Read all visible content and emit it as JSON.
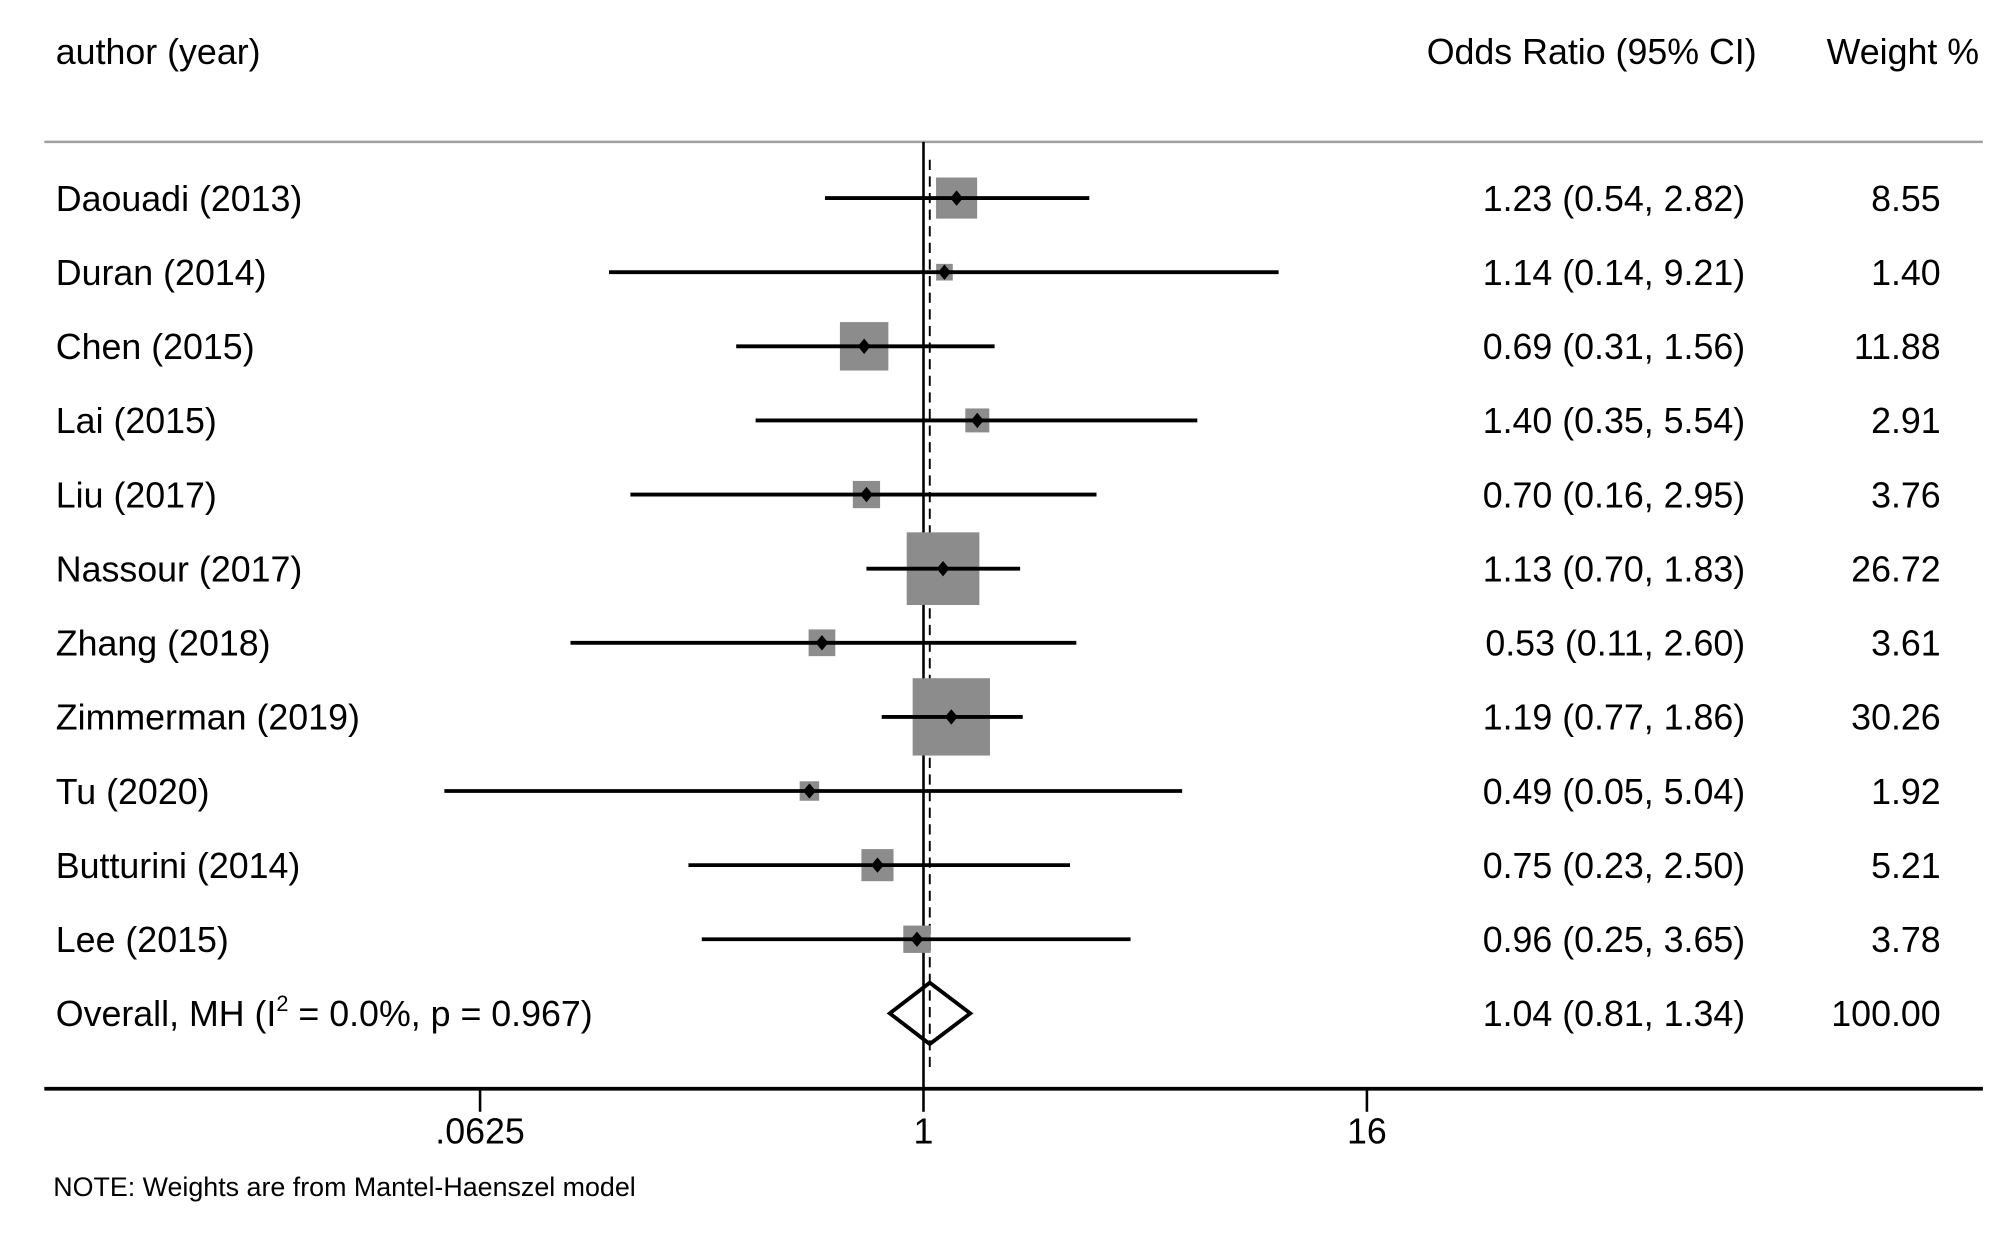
{
  "chart_data": {
    "type": "forest",
    "headers": {
      "study": "author (year)",
      "effect": "Odds Ratio  (95% CI)",
      "weight": "Weight  %"
    },
    "x_scale": "log",
    "x_ticks": [
      0.0625,
      1,
      16
    ],
    "x_tick_labels": [
      ".0625",
      "1",
      "16"
    ],
    "null_line": 1,
    "studies": [
      {
        "label": "Daouadi (2013)",
        "or": 1.23,
        "lo": 0.54,
        "hi": 2.82,
        "ci_text": "1.23 (0.54, 2.82)",
        "weight": 8.55,
        "weight_text": "8.55"
      },
      {
        "label": "Duran (2014)",
        "or": 1.14,
        "lo": 0.14,
        "hi": 9.21,
        "ci_text": "1.14 (0.14, 9.21)",
        "weight": 1.4,
        "weight_text": "1.40"
      },
      {
        "label": "Chen (2015)",
        "or": 0.69,
        "lo": 0.31,
        "hi": 1.56,
        "ci_text": "0.69 (0.31, 1.56)",
        "weight": 11.88,
        "weight_text": "11.88"
      },
      {
        "label": "Lai (2015)",
        "or": 1.4,
        "lo": 0.35,
        "hi": 5.54,
        "ci_text": "1.40 (0.35, 5.54)",
        "weight": 2.91,
        "weight_text": "2.91"
      },
      {
        "label": "Liu (2017)",
        "or": 0.7,
        "lo": 0.16,
        "hi": 2.95,
        "ci_text": "0.70 (0.16, 2.95)",
        "weight": 3.76,
        "weight_text": "3.76"
      },
      {
        "label": "Nassour (2017)",
        "or": 1.13,
        "lo": 0.7,
        "hi": 1.83,
        "ci_text": "1.13 (0.70, 1.83)",
        "weight": 26.72,
        "weight_text": "26.72"
      },
      {
        "label": "Zhang (2018)",
        "or": 0.53,
        "lo": 0.11,
        "hi": 2.6,
        "ci_text": "0.53 (0.11, 2.60)",
        "weight": 3.61,
        "weight_text": "3.61"
      },
      {
        "label": "Zimmerman (2019)",
        "or": 1.19,
        "lo": 0.77,
        "hi": 1.86,
        "ci_text": "1.19 (0.77, 1.86)",
        "weight": 30.26,
        "weight_text": "30.26"
      },
      {
        "label": "Tu (2020)",
        "or": 0.49,
        "lo": 0.05,
        "hi": 5.04,
        "ci_text": "0.49 (0.05, 5.04)",
        "weight": 1.92,
        "weight_text": "1.92"
      },
      {
        "label": "Butturini (2014)",
        "or": 0.75,
        "lo": 0.23,
        "hi": 2.5,
        "ci_text": "0.75 (0.23, 2.50)",
        "weight": 5.21,
        "weight_text": "5.21"
      },
      {
        "label": "Lee (2015)",
        "or": 0.96,
        "lo": 0.25,
        "hi": 3.65,
        "ci_text": "0.96 (0.25, 3.65)",
        "weight": 3.78,
        "weight_text": "3.78"
      }
    ],
    "overall": {
      "label_prefix": "Overall, MH (I",
      "label_sup": "2",
      "label_suffix": " = 0.0%, p = 0.967)",
      "or": 1.04,
      "lo": 0.81,
      "hi": 1.34,
      "ci_text": "1.04 (0.81, 1.34)",
      "weight_text": "100.00"
    },
    "note": "NOTE: Weights are from Mantel-Haenszel model",
    "colors": {
      "box": "#8c8c8c",
      "line": "#000000",
      "rule": "#a0a0a0"
    }
  }
}
